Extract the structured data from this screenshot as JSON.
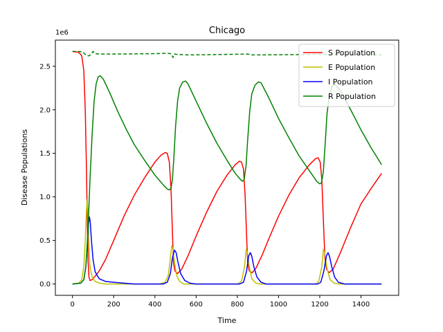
{
  "chart_data": {
    "type": "line",
    "title": "Chicago",
    "xlabel": "Time",
    "ylabel": "Disease Populations",
    "y_scale_label": "1e6",
    "xlim": [
      -83,
      1583
    ],
    "ylim": [
      -0.13,
      2.8
    ],
    "xticks": [
      0,
      200,
      400,
      600,
      800,
      1000,
      1200,
      1400
    ],
    "yticks": [
      0.0,
      0.5,
      1.0,
      1.5,
      2.0,
      2.5
    ],
    "ytick_labels": [
      "0.0",
      "0.5",
      "1.0",
      "1.5",
      "2.0",
      "2.5"
    ],
    "grid": false,
    "legend_position": "top-right",
    "series": [
      {
        "name": "S Population",
        "color": "#ff0000",
        "dashed": false,
        "points": [
          [
            0,
            2.67
          ],
          [
            30,
            2.66
          ],
          [
            45,
            2.62
          ],
          [
            55,
            2.45
          ],
          [
            62,
            2.0
          ],
          [
            68,
            1.3
          ],
          [
            72,
            0.7
          ],
          [
            76,
            0.25
          ],
          [
            80,
            0.08
          ],
          [
            85,
            0.04
          ],
          [
            95,
            0.05
          ],
          [
            110,
            0.09
          ],
          [
            130,
            0.15
          ],
          [
            160,
            0.28
          ],
          [
            200,
            0.5
          ],
          [
            250,
            0.78
          ],
          [
            300,
            1.02
          ],
          [
            350,
            1.22
          ],
          [
            400,
            1.4
          ],
          [
            430,
            1.48
          ],
          [
            450,
            1.51
          ],
          [
            460,
            1.5
          ],
          [
            470,
            1.4
          ],
          [
            478,
            1.1
          ],
          [
            485,
            0.6
          ],
          [
            490,
            0.25
          ],
          [
            497,
            0.15
          ],
          [
            510,
            0.12
          ],
          [
            530,
            0.17
          ],
          [
            560,
            0.32
          ],
          [
            600,
            0.55
          ],
          [
            650,
            0.82
          ],
          [
            700,
            1.06
          ],
          [
            750,
            1.25
          ],
          [
            790,
            1.37
          ],
          [
            810,
            1.41
          ],
          [
            820,
            1.4
          ],
          [
            830,
            1.32
          ],
          [
            838,
            1.0
          ],
          [
            845,
            0.55
          ],
          [
            850,
            0.25
          ],
          [
            858,
            0.15
          ],
          [
            872,
            0.13
          ],
          [
            890,
            0.18
          ],
          [
            920,
            0.33
          ],
          [
            960,
            0.56
          ],
          [
            1000,
            0.78
          ],
          [
            1050,
            1.02
          ],
          [
            1100,
            1.22
          ],
          [
            1150,
            1.37
          ],
          [
            1180,
            1.44
          ],
          [
            1192,
            1.45
          ],
          [
            1202,
            1.4
          ],
          [
            1210,
            1.2
          ],
          [
            1218,
            0.7
          ],
          [
            1225,
            0.3
          ],
          [
            1233,
            0.17
          ],
          [
            1245,
            0.13
          ],
          [
            1265,
            0.17
          ],
          [
            1300,
            0.36
          ],
          [
            1350,
            0.65
          ],
          [
            1400,
            0.92
          ],
          [
            1450,
            1.1
          ],
          [
            1500,
            1.27
          ]
        ]
      },
      {
        "name": "E Population",
        "color": "#bfbf00",
        "dashed": false,
        "points": [
          [
            0,
            0.0
          ],
          [
            30,
            0.01
          ],
          [
            45,
            0.05
          ],
          [
            55,
            0.2
          ],
          [
            62,
            0.5
          ],
          [
            68,
            0.85
          ],
          [
            72,
            0.97
          ],
          [
            76,
            0.75
          ],
          [
            80,
            0.4
          ],
          [
            85,
            0.2
          ],
          [
            95,
            0.08
          ],
          [
            110,
            0.03
          ],
          [
            130,
            0.01
          ],
          [
            160,
            0.0
          ],
          [
            420,
            0.0
          ],
          [
            450,
            0.02
          ],
          [
            465,
            0.1
          ],
          [
            475,
            0.3
          ],
          [
            482,
            0.44
          ],
          [
            488,
            0.4
          ],
          [
            495,
            0.25
          ],
          [
            505,
            0.1
          ],
          [
            520,
            0.03
          ],
          [
            540,
            0.0
          ],
          [
            800,
            0.0
          ],
          [
            820,
            0.03
          ],
          [
            835,
            0.2
          ],
          [
            843,
            0.4
          ],
          [
            850,
            0.35
          ],
          [
            858,
            0.2
          ],
          [
            870,
            0.06
          ],
          [
            890,
            0.01
          ],
          [
            910,
            0.0
          ],
          [
            1180,
            0.0
          ],
          [
            1195,
            0.03
          ],
          [
            1210,
            0.2
          ],
          [
            1218,
            0.4
          ],
          [
            1225,
            0.35
          ],
          [
            1235,
            0.18
          ],
          [
            1250,
            0.05
          ],
          [
            1270,
            0.01
          ],
          [
            1290,
            0.0
          ],
          [
            1500,
            0.0
          ]
        ]
      },
      {
        "name": "I Population",
        "color": "#0000ff",
        "dashed": false,
        "points": [
          [
            0,
            0.0
          ],
          [
            40,
            0.01
          ],
          [
            55,
            0.05
          ],
          [
            65,
            0.2
          ],
          [
            72,
            0.45
          ],
          [
            78,
            0.7
          ],
          [
            82,
            0.77
          ],
          [
            86,
            0.72
          ],
          [
            92,
            0.5
          ],
          [
            100,
            0.28
          ],
          [
            110,
            0.14
          ],
          [
            130,
            0.06
          ],
          [
            160,
            0.03
          ],
          [
            200,
            0.02
          ],
          [
            250,
            0.01
          ],
          [
            300,
            0.0
          ],
          [
            440,
            0.0
          ],
          [
            460,
            0.02
          ],
          [
            475,
            0.12
          ],
          [
            485,
            0.3
          ],
          [
            495,
            0.39
          ],
          [
            503,
            0.36
          ],
          [
            512,
            0.25
          ],
          [
            525,
            0.12
          ],
          [
            545,
            0.04
          ],
          [
            570,
            0.01
          ],
          [
            600,
            0.0
          ],
          [
            810,
            0.0
          ],
          [
            830,
            0.02
          ],
          [
            845,
            0.15
          ],
          [
            855,
            0.32
          ],
          [
            863,
            0.36
          ],
          [
            870,
            0.32
          ],
          [
            880,
            0.2
          ],
          [
            895,
            0.08
          ],
          [
            915,
            0.02
          ],
          [
            940,
            0.0
          ],
          [
            1190,
            0.0
          ],
          [
            1205,
            0.02
          ],
          [
            1220,
            0.15
          ],
          [
            1232,
            0.32
          ],
          [
            1240,
            0.36
          ],
          [
            1247,
            0.32
          ],
          [
            1258,
            0.2
          ],
          [
            1272,
            0.08
          ],
          [
            1290,
            0.02
          ],
          [
            1320,
            0.0
          ],
          [
            1500,
            0.0
          ]
        ]
      },
      {
        "name": "R Population",
        "color": "#008000",
        "dashed": false,
        "points": [
          [
            0,
            0.0
          ],
          [
            40,
            0.01
          ],
          [
            55,
            0.05
          ],
          [
            65,
            0.2
          ],
          [
            75,
            0.6
          ],
          [
            85,
            1.2
          ],
          [
            95,
            1.7
          ],
          [
            105,
            2.1
          ],
          [
            115,
            2.3
          ],
          [
            125,
            2.38
          ],
          [
            135,
            2.39
          ],
          [
            150,
            2.35
          ],
          [
            180,
            2.2
          ],
          [
            220,
            1.98
          ],
          [
            260,
            1.78
          ],
          [
            300,
            1.6
          ],
          [
            350,
            1.42
          ],
          [
            400,
            1.25
          ],
          [
            440,
            1.14
          ],
          [
            460,
            1.09
          ],
          [
            470,
            1.08
          ],
          [
            478,
            1.1
          ],
          [
            485,
            1.2
          ],
          [
            492,
            1.45
          ],
          [
            500,
            1.8
          ],
          [
            510,
            2.1
          ],
          [
            520,
            2.25
          ],
          [
            535,
            2.32
          ],
          [
            548,
            2.33
          ],
          [
            560,
            2.3
          ],
          [
            600,
            2.1
          ],
          [
            650,
            1.85
          ],
          [
            700,
            1.62
          ],
          [
            750,
            1.42
          ],
          [
            790,
            1.27
          ],
          [
            815,
            1.2
          ],
          [
            825,
            1.18
          ],
          [
            833,
            1.2
          ],
          [
            842,
            1.35
          ],
          [
            850,
            1.65
          ],
          [
            860,
            1.98
          ],
          [
            870,
            2.18
          ],
          [
            885,
            2.28
          ],
          [
            902,
            2.32
          ],
          [
            915,
            2.31
          ],
          [
            950,
            2.15
          ],
          [
            1000,
            1.9
          ],
          [
            1050,
            1.68
          ],
          [
            1100,
            1.47
          ],
          [
            1150,
            1.3
          ],
          [
            1185,
            1.18
          ],
          [
            1200,
            1.15
          ],
          [
            1208,
            1.16
          ],
          [
            1217,
            1.28
          ],
          [
            1226,
            1.6
          ],
          [
            1235,
            1.95
          ],
          [
            1247,
            2.18
          ],
          [
            1262,
            2.28
          ],
          [
            1275,
            2.29
          ],
          [
            1300,
            2.22
          ],
          [
            1350,
            2.0
          ],
          [
            1400,
            1.77
          ],
          [
            1450,
            1.56
          ],
          [
            1500,
            1.37
          ]
        ]
      },
      {
        "name": "",
        "color": "#008000",
        "dashed": true,
        "points": [
          [
            0,
            2.67
          ],
          [
            30,
            2.67
          ],
          [
            50,
            2.665
          ],
          [
            60,
            2.64
          ],
          [
            72,
            2.62
          ],
          [
            82,
            2.62
          ],
          [
            90,
            2.64
          ],
          [
            100,
            2.67
          ],
          [
            110,
            2.645
          ],
          [
            130,
            2.64
          ],
          [
            200,
            2.64
          ],
          [
            300,
            2.642
          ],
          [
            400,
            2.645
          ],
          [
            450,
            2.648
          ],
          [
            470,
            2.647
          ],
          [
            480,
            2.64
          ],
          [
            488,
            2.6
          ],
          [
            495,
            2.64
          ],
          [
            510,
            2.635
          ],
          [
            560,
            2.63
          ],
          [
            650,
            2.632
          ],
          [
            750,
            2.636
          ],
          [
            850,
            2.64
          ],
          [
            870,
            2.63
          ],
          [
            900,
            2.63
          ],
          [
            1000,
            2.632
          ],
          [
            1100,
            2.634
          ],
          [
            1200,
            2.638
          ],
          [
            1240,
            2.635
          ],
          [
            1300,
            2.632
          ],
          [
            1400,
            2.63
          ],
          [
            1500,
            2.63
          ]
        ]
      }
    ]
  }
}
